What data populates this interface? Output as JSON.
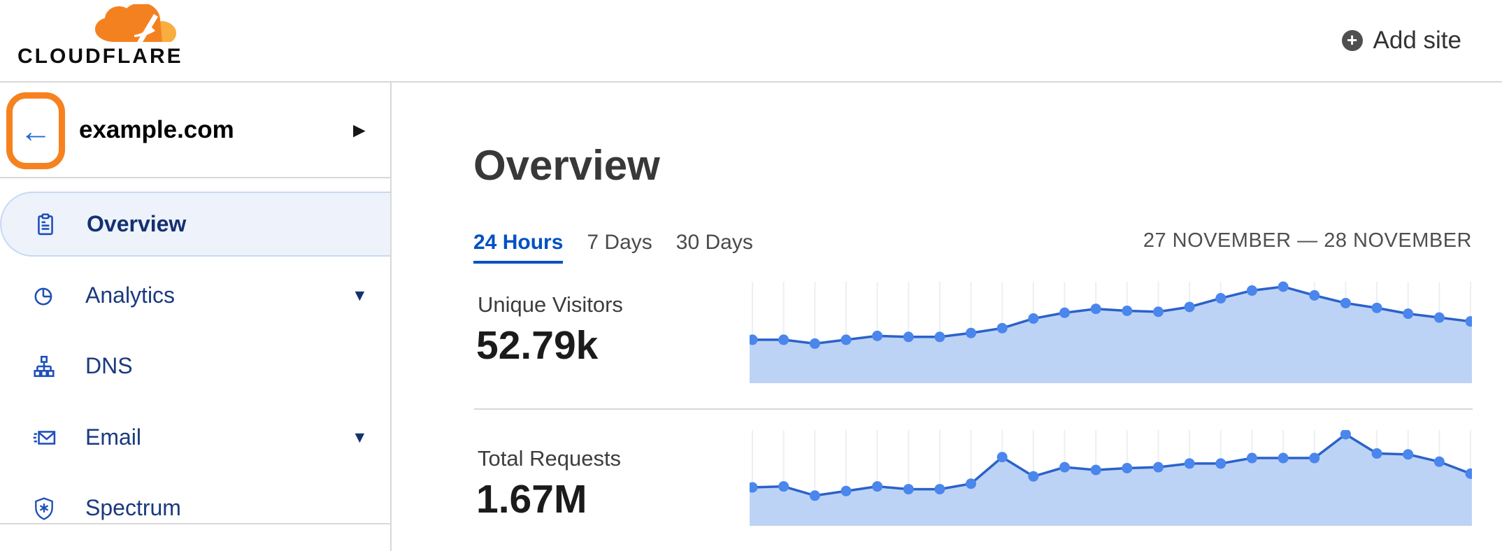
{
  "header": {
    "logo_text": "CLOUDFLARE",
    "add_site_label": "Add site"
  },
  "sidebar": {
    "site_name": "example.com",
    "items": [
      {
        "label": "Overview",
        "icon": "clipboard-icon",
        "selected": true,
        "has_caret": false
      },
      {
        "label": "Analytics",
        "icon": "pie-chart-icon",
        "selected": false,
        "has_caret": true
      },
      {
        "label": "DNS",
        "icon": "dns-tree-icon",
        "selected": false,
        "has_caret": false
      },
      {
        "label": "Email",
        "icon": "email-icon",
        "selected": false,
        "has_caret": true
      },
      {
        "label": "Spectrum",
        "icon": "shield-icon",
        "selected": false,
        "has_caret": false
      }
    ]
  },
  "main": {
    "title": "Overview",
    "tabs": [
      {
        "label": "24 Hours",
        "active": true
      },
      {
        "label": "7 Days",
        "active": false
      },
      {
        "label": "30 Days",
        "active": false
      }
    ],
    "date_range": "27 NOVEMBER — 28 NOVEMBER",
    "stats": [
      {
        "label": "Unique Visitors",
        "value": "52.79k"
      },
      {
        "label": "Total Requests",
        "value": "1.67M"
      }
    ]
  },
  "icons": {
    "plus": "+",
    "back_arrow": "←",
    "expand_right": "▶",
    "caret_down": "▼"
  },
  "colors": {
    "accent_blue": "#0051c3",
    "nav_text_blue": "#1a3a7e",
    "icon_blue": "#1d4fb8",
    "selected_item_bg": "#edf2fb",
    "selected_item_border": "#c9d9f2",
    "annotation_orange": "#f6821f",
    "logo_orange": "#f48120",
    "logo_orange_light": "#faad3f",
    "divider_gray": "#d8d8d8",
    "add_site_circle": "#4f4f4f"
  },
  "chart_data": [
    {
      "type": "area",
      "title": "Unique Visitors",
      "total_shown": "52.79k",
      "period": "24 Hours",
      "x": [
        0,
        1,
        2,
        3,
        4,
        5,
        6,
        7,
        8,
        9,
        10,
        11,
        12,
        13,
        14,
        15,
        16,
        17,
        18,
        19,
        20,
        21,
        22,
        23
      ],
      "x_unit": "hour (24 hourly points, no axis labels shown)",
      "values": [
        45,
        45,
        41,
        45,
        49,
        48,
        48,
        52,
        57,
        67,
        73,
        77,
        75,
        74,
        79,
        88,
        96,
        100,
        91,
        83,
        78,
        72,
        68,
        64
      ],
      "y_unit": "relative height, % of series max (no y-axis shown)",
      "ylim": [
        0,
        100
      ],
      "grid": "vertical gridline at each point",
      "line_color": "#2b62c9",
      "dot_color": "#4a86ec",
      "fill_color": "#bdd3f6",
      "grid_color": "#edeff3"
    },
    {
      "type": "area",
      "title": "Total Requests",
      "total_shown": "1.67M",
      "period": "24 Hours",
      "x": [
        0,
        1,
        2,
        3,
        4,
        5,
        6,
        7,
        8,
        9,
        10,
        11,
        12,
        13,
        14,
        15,
        16,
        17,
        18,
        19,
        20,
        21,
        22,
        23
      ],
      "x_unit": "hour (24 hourly points, no axis labels shown)",
      "values": [
        42,
        43,
        33,
        38,
        43,
        40,
        40,
        46,
        75,
        54,
        64,
        61,
        63,
        64,
        68,
        68,
        74,
        74,
        74,
        100,
        79,
        78,
        70,
        57
      ],
      "y_unit": "relative height, % of series max (no y-axis shown)",
      "ylim": [
        0,
        100
      ],
      "grid": "vertical gridline at each point",
      "line_color": "#2b62c9",
      "dot_color": "#4a86ec",
      "fill_color": "#bdd3f6",
      "grid_color": "#edeff3"
    }
  ]
}
